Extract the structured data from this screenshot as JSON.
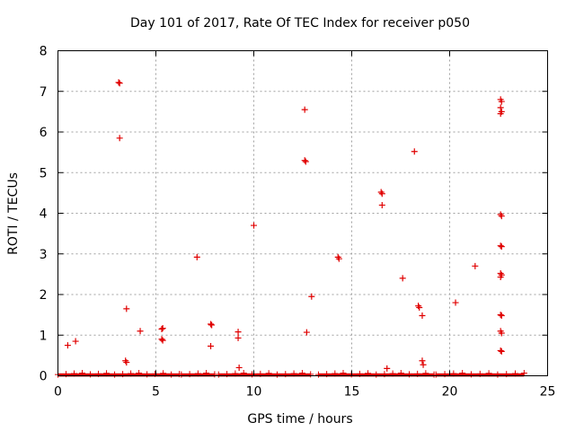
{
  "chart_data": {
    "type": "scatter",
    "title": "Day 101 of 2017, Rate Of TEC Index for receiver p050",
    "xlabel": "GPS time / hours",
    "ylabel": "ROTI / TECUs",
    "xlim": [
      0,
      25
    ],
    "ylim": [
      0,
      8
    ],
    "xticks": [
      "0",
      "5",
      "10",
      "15",
      "20",
      "25"
    ],
    "yticks": [
      "0",
      "1",
      "2",
      "3",
      "4",
      "5",
      "6",
      "7",
      "8"
    ],
    "grid": true,
    "marker": "plus",
    "marker_color": "#e00000",
    "baseline_segments": [
      [
        0.0,
        6.2
      ],
      [
        6.3,
        8.0
      ],
      [
        8.2,
        12.9
      ],
      [
        13.3,
        19.2
      ],
      [
        19.3,
        23.8
      ]
    ],
    "points": [
      {
        "x": 0.5,
        "y": 0.75
      },
      {
        "x": 0.9,
        "y": 0.85
      },
      {
        "x": 3.1,
        "y": 7.22
      },
      {
        "x": 3.15,
        "y": 7.2
      },
      {
        "x": 3.15,
        "y": 5.85
      },
      {
        "x": 3.5,
        "y": 1.65
      },
      {
        "x": 3.45,
        "y": 0.37
      },
      {
        "x": 3.5,
        "y": 0.33
      },
      {
        "x": 4.2,
        "y": 1.1
      },
      {
        "x": 5.3,
        "y": 1.15
      },
      {
        "x": 5.35,
        "y": 1.17
      },
      {
        "x": 5.3,
        "y": 0.9
      },
      {
        "x": 5.35,
        "y": 0.87
      },
      {
        "x": 7.1,
        "y": 2.92
      },
      {
        "x": 7.8,
        "y": 1.27
      },
      {
        "x": 7.85,
        "y": 1.25
      },
      {
        "x": 7.8,
        "y": 0.73
      },
      {
        "x": 9.2,
        "y": 1.08
      },
      {
        "x": 9.2,
        "y": 0.93
      },
      {
        "x": 9.25,
        "y": 0.2
      },
      {
        "x": 10.0,
        "y": 3.7
      },
      {
        "x": 12.6,
        "y": 6.55
      },
      {
        "x": 12.6,
        "y": 5.3
      },
      {
        "x": 12.65,
        "y": 5.27
      },
      {
        "x": 12.7,
        "y": 1.07
      },
      {
        "x": 12.95,
        "y": 1.95
      },
      {
        "x": 14.3,
        "y": 2.92
      },
      {
        "x": 14.35,
        "y": 2.88
      },
      {
        "x": 16.5,
        "y": 4.52
      },
      {
        "x": 16.55,
        "y": 4.48
      },
      {
        "x": 16.55,
        "y": 4.2
      },
      {
        "x": 16.8,
        "y": 0.18
      },
      {
        "x": 17.6,
        "y": 2.4
      },
      {
        "x": 18.2,
        "y": 5.52
      },
      {
        "x": 18.4,
        "y": 1.72
      },
      {
        "x": 18.45,
        "y": 1.68
      },
      {
        "x": 18.6,
        "y": 1.48
      },
      {
        "x": 18.6,
        "y": 0.37
      },
      {
        "x": 18.65,
        "y": 0.27
      },
      {
        "x": 20.3,
        "y": 1.8
      },
      {
        "x": 21.3,
        "y": 2.7
      },
      {
        "x": 22.6,
        "y": 6.8
      },
      {
        "x": 22.65,
        "y": 6.75
      },
      {
        "x": 22.6,
        "y": 6.6
      },
      {
        "x": 22.65,
        "y": 6.5
      },
      {
        "x": 22.6,
        "y": 6.45
      },
      {
        "x": 22.6,
        "y": 3.97
      },
      {
        "x": 22.65,
        "y": 3.93
      },
      {
        "x": 22.6,
        "y": 3.2
      },
      {
        "x": 22.65,
        "y": 3.18
      },
      {
        "x": 22.6,
        "y": 2.52
      },
      {
        "x": 22.65,
        "y": 2.48
      },
      {
        "x": 22.6,
        "y": 2.43
      },
      {
        "x": 22.6,
        "y": 1.5
      },
      {
        "x": 22.65,
        "y": 1.48
      },
      {
        "x": 22.6,
        "y": 1.1
      },
      {
        "x": 22.65,
        "y": 1.05
      },
      {
        "x": 22.6,
        "y": 0.62
      },
      {
        "x": 22.65,
        "y": 0.6
      }
    ]
  }
}
